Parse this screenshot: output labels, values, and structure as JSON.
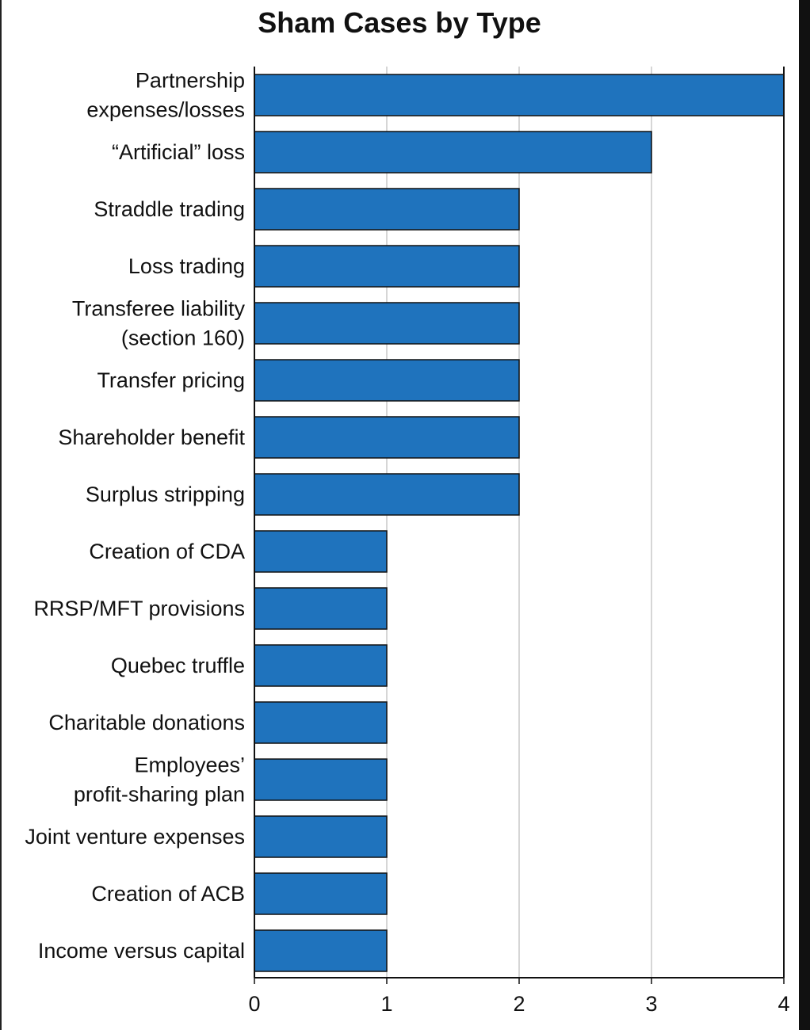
{
  "chart_data": {
    "type": "bar",
    "orientation": "horizontal",
    "title": "Sham Cases by Type",
    "xlabel": "",
    "ylabel": "",
    "xlim": [
      0,
      4
    ],
    "x_ticks": [
      "0",
      "1",
      "2",
      "3",
      "4"
    ],
    "grid": "vertical",
    "bar_color": "#1f73bd",
    "categories": [
      [
        "Partnership",
        "expenses/losses"
      ],
      [
        "“Artificial” loss"
      ],
      [
        "Straddle trading"
      ],
      [
        "Loss trading"
      ],
      [
        "Transferee liability",
        "(section 160)"
      ],
      [
        "Transfer pricing"
      ],
      [
        "Shareholder benefit"
      ],
      [
        "Surplus stripping"
      ],
      [
        "Creation of CDA"
      ],
      [
        "RRSP/MFT provisions"
      ],
      [
        "Quebec truffle"
      ],
      [
        "Charitable donations"
      ],
      [
        "Employees’",
        "profit-sharing plan"
      ],
      [
        "Joint venture expenses"
      ],
      [
        "Creation of ACB"
      ],
      [
        "Income versus capital"
      ]
    ],
    "values": [
      4,
      3,
      2,
      2,
      2,
      2,
      2,
      2,
      1,
      1,
      1,
      1,
      1,
      1,
      1,
      1
    ]
  }
}
